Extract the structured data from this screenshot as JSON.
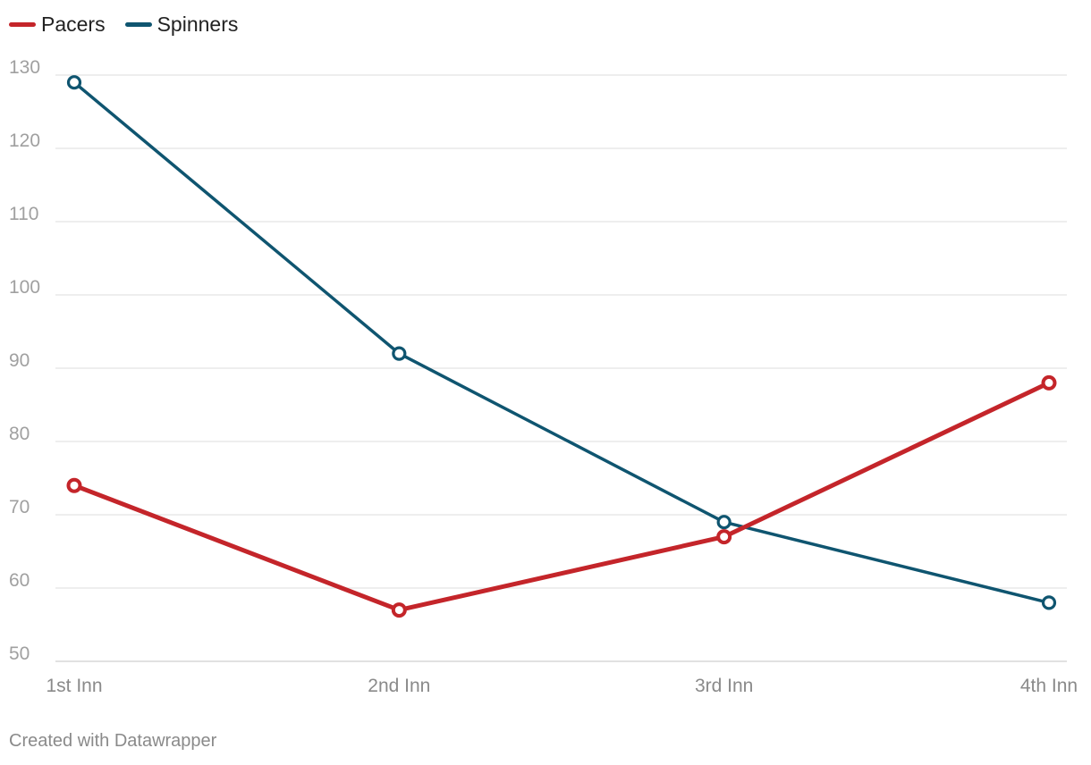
{
  "chart_data": {
    "type": "line",
    "title": "",
    "xlabel": "",
    "ylabel": "",
    "categories": [
      "1st Inn",
      "2nd Inn",
      "3rd Inn",
      "4th Inn"
    ],
    "ylim": [
      50,
      130
    ],
    "yticks": [
      50,
      60,
      70,
      80,
      90,
      100,
      110,
      120,
      130
    ],
    "grid": true,
    "legend_position": "top-left",
    "series": [
      {
        "name": "Pacers",
        "color": "#c4252a",
        "values": [
          74,
          57,
          67,
          88
        ]
      },
      {
        "name": "Spinners",
        "color": "#0f5570",
        "values": [
          129,
          92,
          69,
          58
        ]
      }
    ]
  },
  "footer": {
    "credit": "Created with Datawrapper"
  }
}
